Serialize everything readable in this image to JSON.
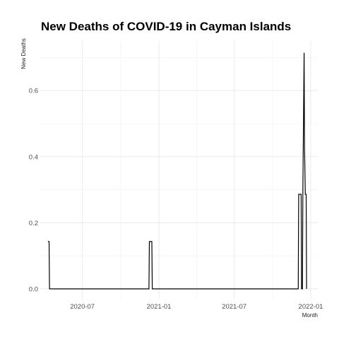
{
  "chart_data": {
    "type": "line",
    "title": "New Deaths of COVID-19 in Cayman Islands",
    "xlabel": "Month",
    "ylabel": "New Deaths",
    "x_ticks": [
      {
        "date": "2020-07-01",
        "label": "2020-07"
      },
      {
        "date": "2021-01-01",
        "label": "2021-01"
      },
      {
        "date": "2021-07-01",
        "label": "2021-07"
      },
      {
        "date": "2022-01-01",
        "label": "2022-01"
      }
    ],
    "y_ticks": [
      {
        "value": 0.0,
        "label": "0.0"
      },
      {
        "value": 0.2,
        "label": "0.2"
      },
      {
        "value": 0.4,
        "label": "0.4"
      },
      {
        "value": 0.6,
        "label": "0.6"
      }
    ],
    "xlim": [
      "2020-03-20",
      "2022-01-18"
    ],
    "ylim": [
      -0.03,
      0.75
    ],
    "grid": true,
    "series": [
      {
        "values": [
          {
            "x": "2020-04-09",
            "y": 0.143
          },
          {
            "x": "2020-04-12",
            "y": 0.143
          },
          {
            "x": "2020-04-13",
            "y": 0.0
          },
          {
            "x": "2020-12-08",
            "y": 0.0
          },
          {
            "x": "2020-12-09",
            "y": 0.143
          },
          {
            "x": "2020-12-15",
            "y": 0.143
          },
          {
            "x": "2020-12-16",
            "y": 0.0
          },
          {
            "x": "2021-12-02",
            "y": 0.0
          },
          {
            "x": "2021-12-03",
            "y": 0.286
          },
          {
            "x": "2021-12-09",
            "y": 0.286
          },
          {
            "x": "2021-12-10",
            "y": 0.0
          },
          {
            "x": "2021-12-12",
            "y": 0.0
          },
          {
            "x": "2021-12-13",
            "y": 0.286
          },
          {
            "x": "2021-12-14",
            "y": 0.429
          },
          {
            "x": "2021-12-16",
            "y": 0.714
          },
          {
            "x": "2021-12-17",
            "y": 0.429
          },
          {
            "x": "2021-12-19",
            "y": 0.286
          },
          {
            "x": "2021-12-21",
            "y": 0.286
          },
          {
            "x": "2021-12-22",
            "y": 0.0
          }
        ]
      }
    ]
  }
}
